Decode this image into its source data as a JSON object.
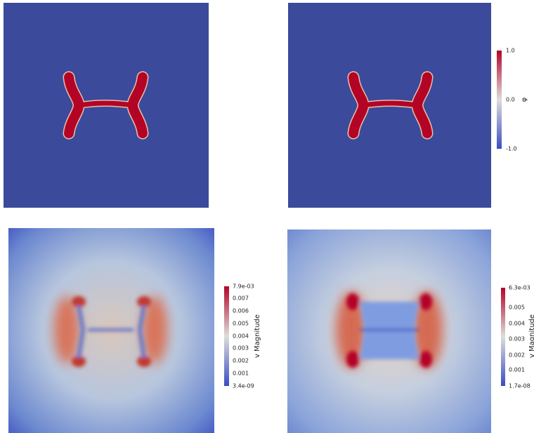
{
  "colorbars": [
    {
      "title": "φ",
      "ticks": [
        "1.0",
        "0.0",
        "-1.0"
      ]
    },
    {
      "title": "v Magnitude",
      "ticks": [
        "7.9e-03",
        "0.007",
        "0.006",
        "0.005",
        "0.004",
        "0.003",
        "0.002",
        "0.001",
        "3.4e-09"
      ]
    },
    {
      "title": "v Magnitude",
      "ticks": [
        "6.3e-03",
        "0.005",
        "0.004",
        "0.003",
        "0.002",
        "0.001",
        "1.7e-08"
      ]
    }
  ]
}
